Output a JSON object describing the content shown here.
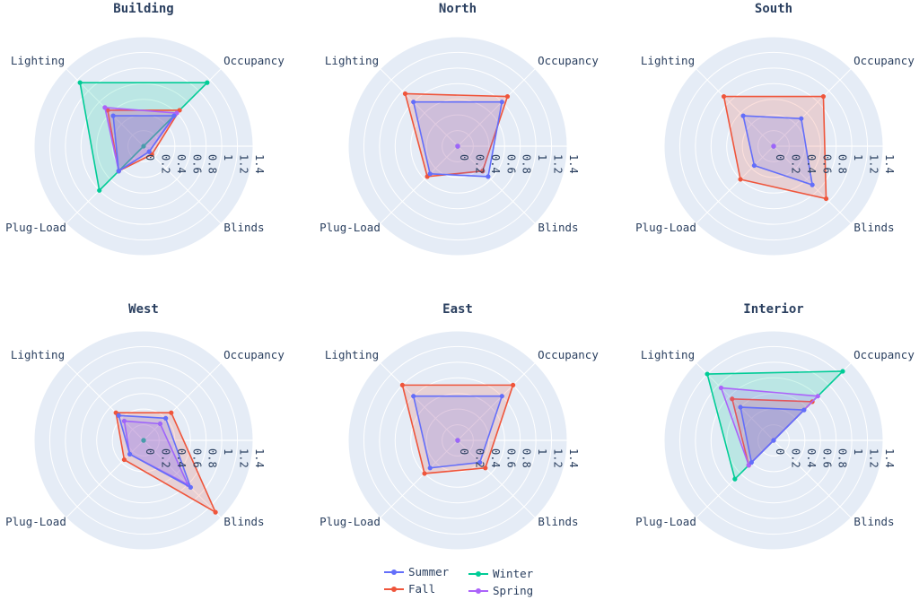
{
  "chart_data": {
    "type": "radar",
    "axes": [
      "Occupancy",
      "Lighting",
      "Plug-Load",
      "Blinds"
    ],
    "radial_ticks": [
      "0",
      "0.2",
      "0.4",
      "0.6",
      "0.8",
      "1",
      "1.2",
      "1.4"
    ],
    "radial_range": [
      0,
      1.4
    ],
    "legend_placement": "bottom-center",
    "series_styles": [
      {
        "name": "Summer",
        "color": "#636efa"
      },
      {
        "name": "Fall",
        "color": "#ef553b"
      },
      {
        "name": "Winter",
        "color": "#00cc96"
      },
      {
        "name": "Spring",
        "color": "#ab63fa"
      }
    ],
    "panels": [
      {
        "title": "Building",
        "values": {
          "Summer": [
            0.55,
            0.55,
            0.45,
            0.1
          ],
          "Fall": [
            0.65,
            0.65,
            0.45,
            0.15
          ],
          "Winter": [
            1.15,
            1.15,
            0.8,
            0.0
          ],
          "Spring": [
            0.6,
            0.7,
            0.45,
            0.1
          ]
        }
      },
      {
        "title": "North",
        "values": {
          "Summer": [
            0.8,
            0.8,
            0.5,
            0.55
          ],
          "Fall": [
            0.9,
            0.95,
            0.55,
            0.45
          ],
          "Winter": [
            0.0,
            0.0,
            0.0,
            0.0
          ],
          "Spring": [
            0.0,
            0.0,
            0.0,
            0.0
          ]
        }
      },
      {
        "title": "South",
        "values": {
          "Summer": [
            0.5,
            0.55,
            0.35,
            0.7
          ],
          "Fall": [
            0.9,
            0.9,
            0.6,
            0.95
          ],
          "Winter": [
            0.0,
            0.0,
            0.0,
            0.0
          ],
          "Spring": [
            0.0,
            0.0,
            0.0,
            0.0
          ]
        }
      },
      {
        "title": "West",
        "values": {
          "Summer": [
            0.4,
            0.45,
            0.25,
            0.85
          ],
          "Fall": [
            0.5,
            0.5,
            0.35,
            1.3
          ],
          "Winter": [
            0.0,
            0.0,
            0.0,
            0.0
          ],
          "Spring": [
            0.3,
            0.35,
            0.25,
            0.8
          ]
        }
      },
      {
        "title": "East",
        "values": {
          "Summer": [
            0.8,
            0.8,
            0.5,
            0.4
          ],
          "Fall": [
            1.0,
            1.0,
            0.6,
            0.5
          ],
          "Winter": [
            0.0,
            0.0,
            0.0,
            0.0
          ],
          "Spring": [
            0.0,
            0.0,
            0.0,
            0.0
          ]
        }
      },
      {
        "title": "Interior",
        "values": {
          "Summer": [
            0.55,
            0.6,
            0.4,
            0.0
          ],
          "Fall": [
            0.7,
            0.75,
            0.45,
            0.0
          ],
          "Winter": [
            1.25,
            1.2,
            0.7,
            0.0
          ],
          "Spring": [
            0.8,
            0.95,
            0.45,
            0.0
          ]
        }
      }
    ]
  }
}
